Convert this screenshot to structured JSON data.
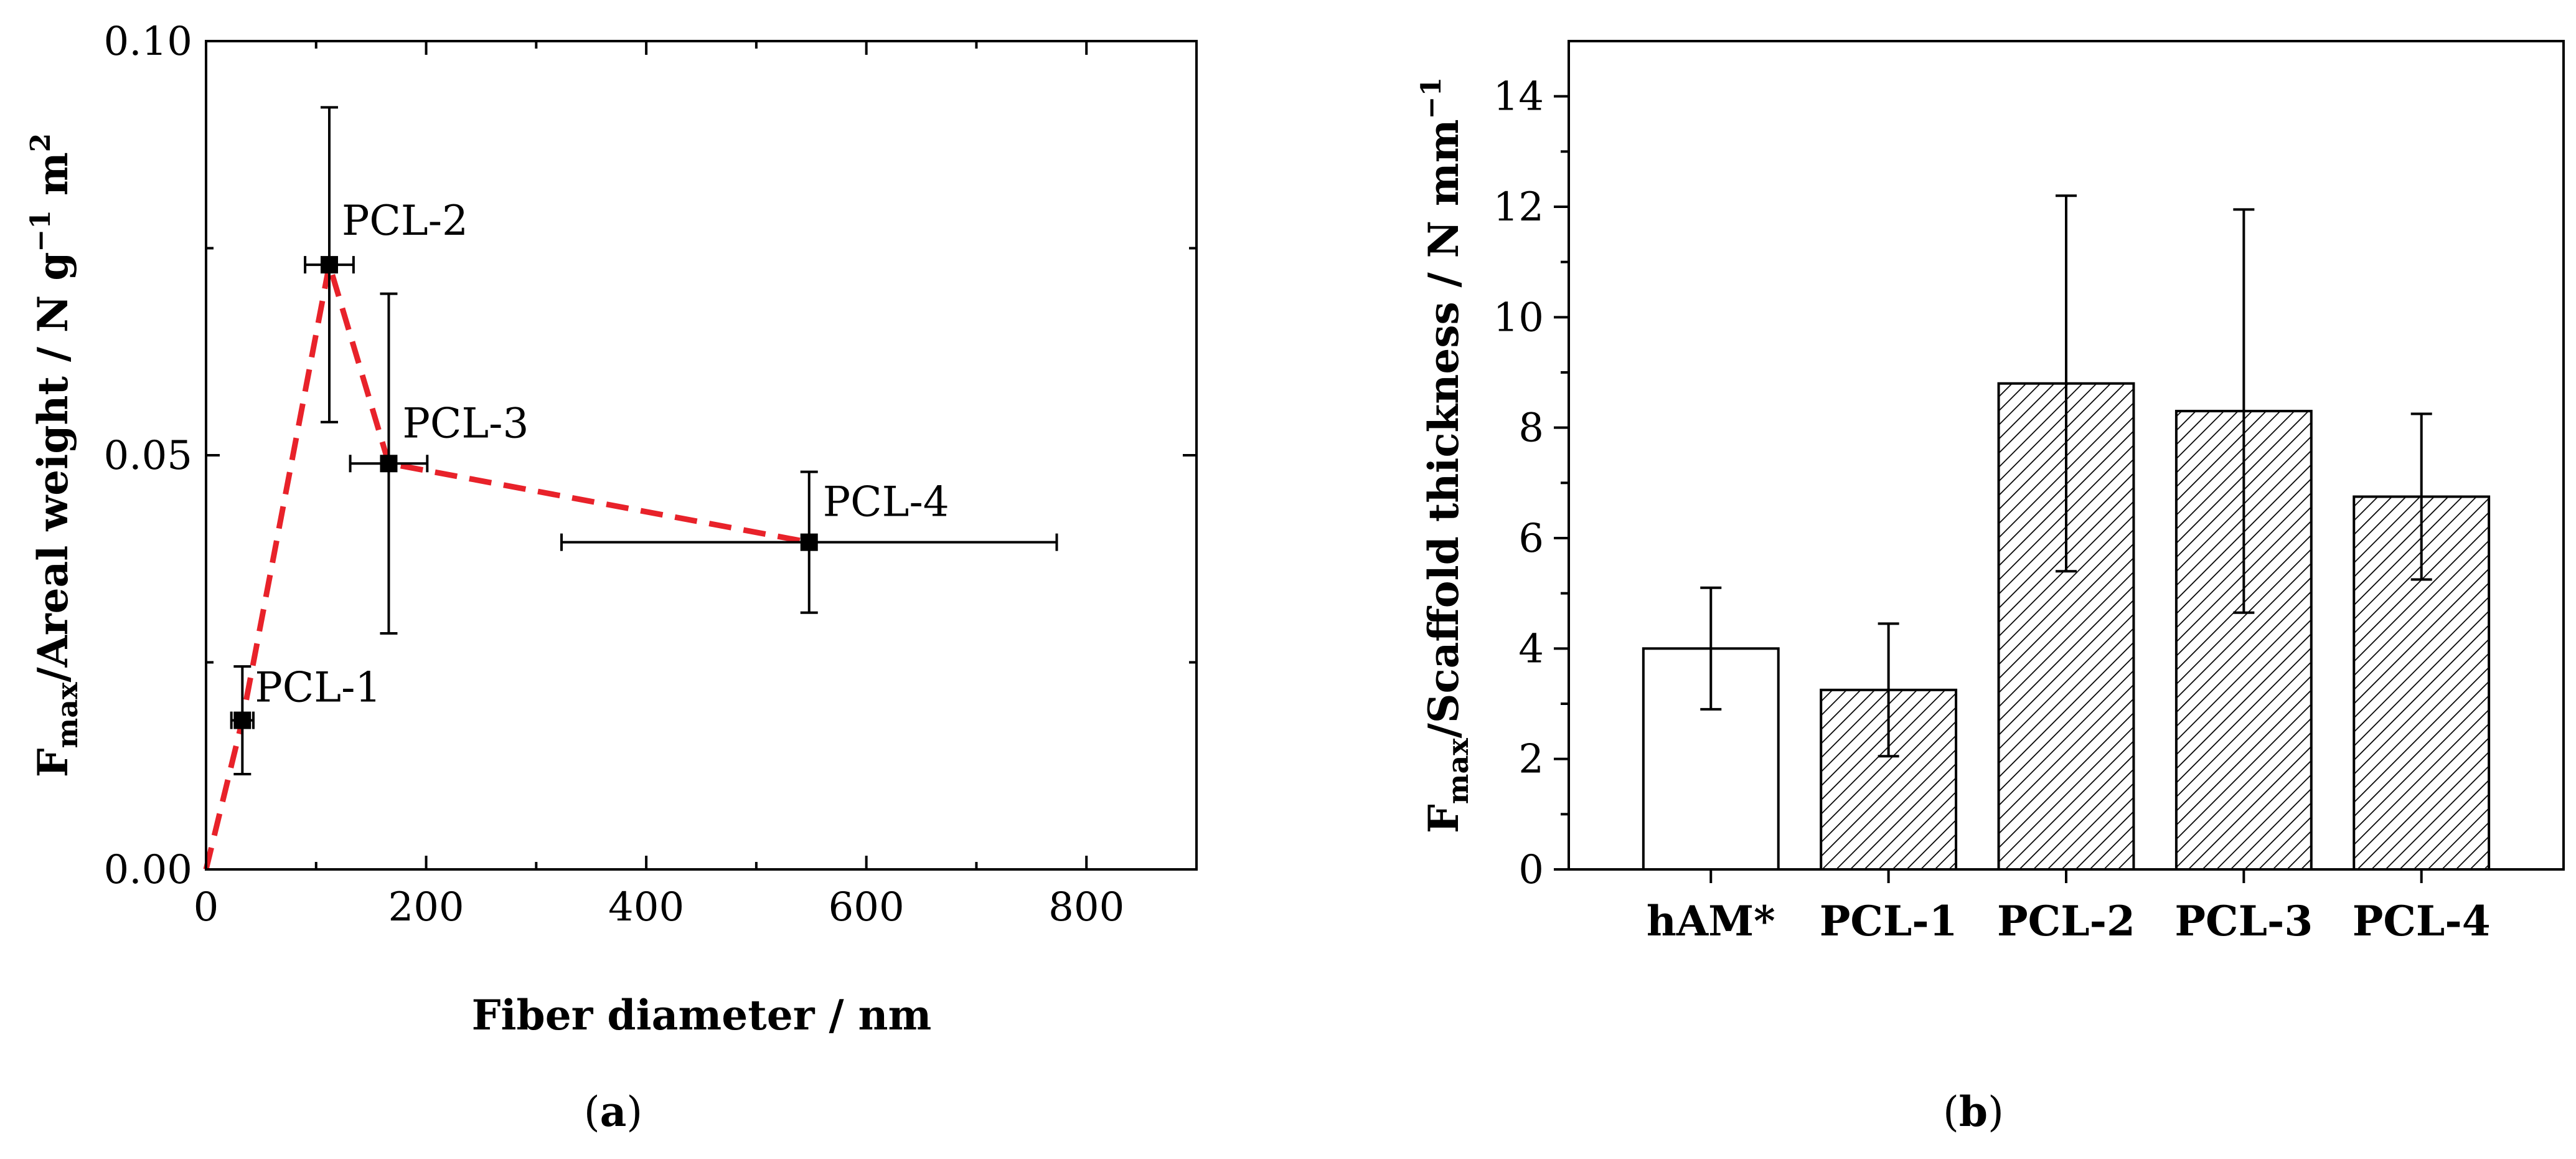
{
  "chart_data": [
    {
      "type": "scatter",
      "panel": "(a)",
      "panel_letter": "a",
      "xlabel": "Fiber diameter  /  nm",
      "ylabel": {
        "f": "F",
        "f_sub": "max",
        "main": "/Areal weight  /  N g",
        "exp1": "−1",
        "unit2": " m",
        "exp2": "2"
      },
      "xlim": [
        0,
        900
      ],
      "ylim": [
        0.0,
        0.1
      ],
      "xticks": [
        0,
        200,
        400,
        600,
        800
      ],
      "xtick_labels": [
        "0",
        "200",
        "400",
        "600",
        "800"
      ],
      "yticks": [
        0.0,
        0.05,
        0.1
      ],
      "ytick_labels": [
        "0.00",
        "0.05",
        "0.10"
      ],
      "points": [
        {
          "name": "PCL-1",
          "x": 33,
          "y": 0.018,
          "xerr": 10,
          "yerr_low": 0.0065,
          "yerr_high": 0.0065
        },
        {
          "name": "PCL-2",
          "x": 112,
          "y": 0.073,
          "xerr": 22,
          "yerr_low": 0.019,
          "yerr_high": 0.019
        },
        {
          "name": "PCL-3",
          "x": 166,
          "y": 0.049,
          "xerr": 35,
          "yerr_low": 0.0205,
          "yerr_high": 0.0205
        },
        {
          "name": "PCL-4",
          "x": 548,
          "y": 0.0395,
          "xerr": 225,
          "yerr_low": 0.0085,
          "yerr_high": 0.0085
        }
      ],
      "trend_line": {
        "style": "dashed",
        "color": "#e8222a",
        "x": [
          0,
          33,
          112,
          166,
          548
        ],
        "y": [
          0.0,
          0.018,
          0.073,
          0.049,
          0.0395
        ]
      }
    },
    {
      "type": "bar",
      "panel": "(b)",
      "panel_letter": "b",
      "ylabel": {
        "f": "F",
        "f_sub": "max",
        "main": "/Scaffold thickness  /  N mm",
        "exp": "−1"
      },
      "categories": [
        "hAM*",
        "PCL-1",
        "PCL-2",
        "PCL-3",
        "PCL-4"
      ],
      "values": [
        4.0,
        3.25,
        8.8,
        8.3,
        6.75
      ],
      "errors": [
        1.1,
        1.2,
        3.4,
        3.65,
        1.5
      ],
      "fills": [
        "plain",
        "hatched",
        "hatched",
        "hatched",
        "hatched"
      ],
      "ylim": [
        0,
        15
      ],
      "yticks": [
        0,
        2,
        4,
        6,
        8,
        10,
        12,
        14
      ],
      "ytick_labels": [
        "0",
        "2",
        "4",
        "6",
        "8",
        "10",
        "12",
        "14"
      ]
    }
  ]
}
